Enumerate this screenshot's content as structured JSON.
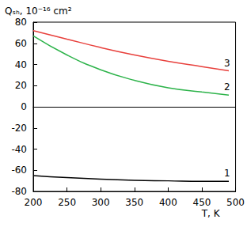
{
  "chart_data": {
    "type": "line",
    "x_label": "T, K",
    "y_label": "Qₛₕ, 10⁻¹⁶ cm²",
    "xlim": [
      200,
      500
    ],
    "xticks": [
      200,
      250,
      300,
      350,
      400,
      450,
      500
    ],
    "ylim": [
      -80,
      80
    ],
    "yticks": [
      -80,
      -60,
      -40,
      -20,
      0,
      20,
      40,
      60,
      80
    ],
    "grid": false,
    "x": [
      200,
      250,
      300,
      350,
      400,
      450,
      490
    ],
    "series": [
      {
        "name": "1",
        "color": "#000000",
        "values": [
          -65,
          -67,
          -68.5,
          -69.5,
          -70,
          -70.5,
          -70.5
        ]
      },
      {
        "name": "2",
        "color": "#2db34a",
        "values": [
          67,
          49,
          35,
          25,
          18,
          14,
          11
        ]
      },
      {
        "name": "3",
        "color": "#e8403c",
        "values": [
          72,
          64,
          56,
          49,
          43,
          38,
          34
        ]
      }
    ]
  }
}
